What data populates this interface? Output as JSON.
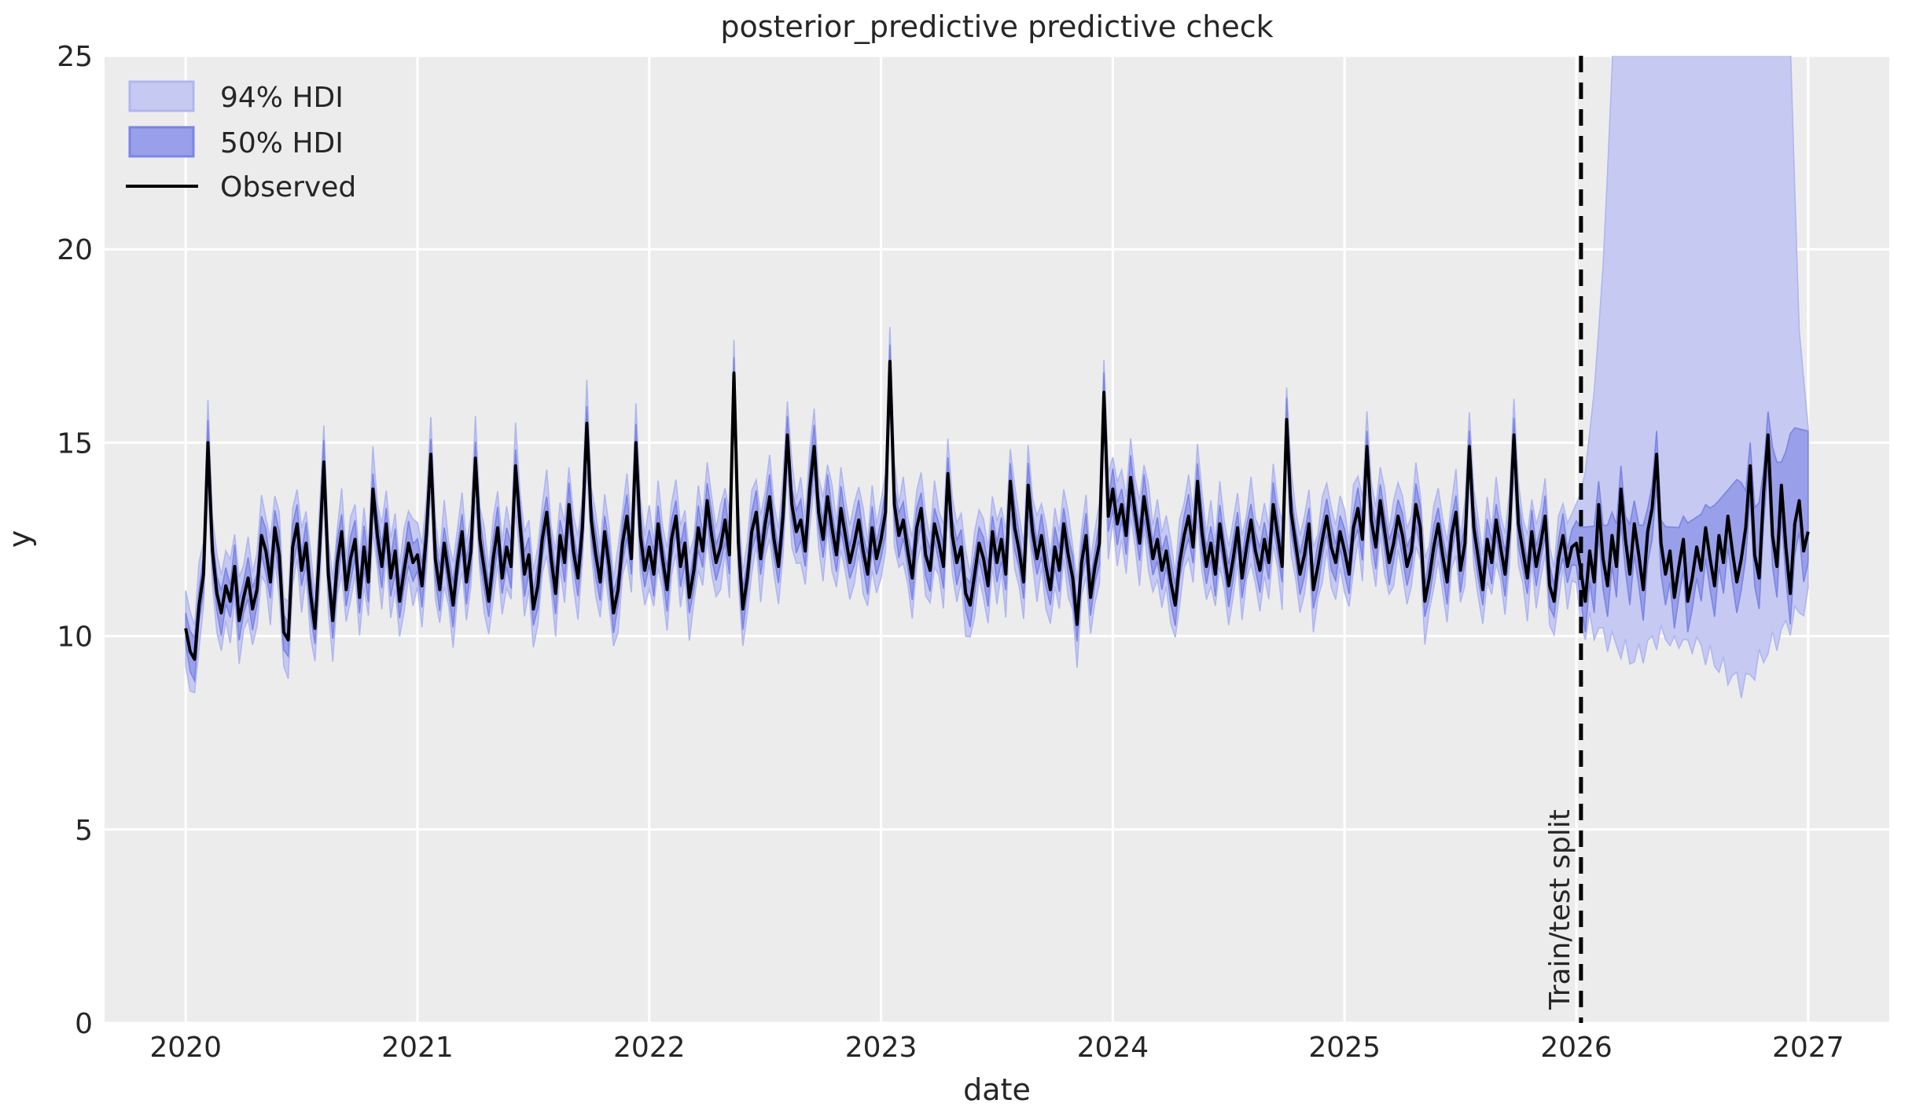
{
  "chart_data": {
    "type": "line",
    "title": "posterior_predictive predictive check",
    "xlabel": "date",
    "ylabel": "y",
    "xlim": [
      2019.65,
      2027.35
    ],
    "ylim": [
      0,
      25
    ],
    "xticks": [
      "2020",
      "2021",
      "2022",
      "2023",
      "2024",
      "2025",
      "2026",
      "2027"
    ],
    "xtick_years": [
      2020,
      2021,
      2022,
      2023,
      2024,
      2025,
      2026,
      2027
    ],
    "yticks": [
      0,
      5,
      10,
      15,
      20,
      25
    ],
    "grid": "white gridlines on light gray axes background",
    "legend": {
      "position": "upper left",
      "entries": [
        {
          "label": "94% HDI",
          "fill": "#c6c9f1",
          "edge": "#b0b6ee"
        },
        {
          "label": "50% HDI",
          "fill": "#999fe8",
          "edge": "#7b84e4"
        },
        {
          "label": "Observed",
          "stroke": "#000000"
        }
      ]
    },
    "annotation": {
      "label": "Train/test split",
      "x": 2026.02,
      "style": "vertical black dashed line, label rotated 90 degrees at line, lower left"
    },
    "series": {
      "observed": {
        "name": "Observed",
        "x_start": 2020,
        "points_per_year": 52,
        "values": [
          10.2,
          9.6,
          9.4,
          10.8,
          11.6,
          15.0,
          12.2,
          11.1,
          10.6,
          11.3,
          10.9,
          11.8,
          10.4,
          11.0,
          11.5,
          10.7,
          11.2,
          12.6,
          12.2,
          11.4,
          12.8,
          12.1,
          10.1,
          9.9,
          12.3,
          12.9,
          11.7,
          12.4,
          11.1,
          10.2,
          12.2,
          14.5,
          11.6,
          10.4,
          11.9,
          12.7,
          11.2,
          12.0,
          12.5,
          11.0,
          12.3,
          11.4,
          13.8,
          12.6,
          11.8,
          12.9,
          11.5,
          12.2,
          10.9,
          11.7,
          12.4,
          11.9,
          12.1,
          11.3,
          12.6,
          14.7,
          12.0,
          11.2,
          12.4,
          11.6,
          10.8,
          11.9,
          12.7,
          11.4,
          12.2,
          14.6,
          12.5,
          11.7,
          10.9,
          12.0,
          12.8,
          11.5,
          12.3,
          11.8,
          14.4,
          12.9,
          11.6,
          12.1,
          10.7,
          11.3,
          12.5,
          13.2,
          12.0,
          11.1,
          12.6,
          11.9,
          13.4,
          12.2,
          11.5,
          12.8,
          15.5,
          13.0,
          12.1,
          11.4,
          12.7,
          11.8,
          10.6,
          11.2,
          12.4,
          13.1,
          12.0,
          15.0,
          12.6,
          11.7,
          12.3,
          11.6,
          12.9,
          12.0,
          11.2,
          12.5,
          13.1,
          11.8,
          12.4,
          11.0,
          11.7,
          12.8,
          12.2,
          13.5,
          12.6,
          11.9,
          12.3,
          13.0,
          12.1,
          16.8,
          12.4,
          10.7,
          11.5,
          12.7,
          13.2,
          12.0,
          12.9,
          13.6,
          12.5,
          11.8,
          13.1,
          15.2,
          13.4,
          12.7,
          13.0,
          12.2,
          13.8,
          14.9,
          13.2,
          12.5,
          13.6,
          12.8,
          12.1,
          13.3,
          12.6,
          11.9,
          12.4,
          13.0,
          12.2,
          11.6,
          12.8,
          12.0,
          12.5,
          13.2,
          17.1,
          13.4,
          12.6,
          13.0,
          12.2,
          11.5,
          12.8,
          13.3,
          12.1,
          11.7,
          12.9,
          12.4,
          11.8,
          14.2,
          12.6,
          11.9,
          12.3,
          11.1,
          10.8,
          11.6,
          12.4,
          12.0,
          11.3,
          12.7,
          11.9,
          12.5,
          11.6,
          14.0,
          12.8,
          12.2,
          11.4,
          13.9,
          12.7,
          12.0,
          12.6,
          11.8,
          11.2,
          12.3,
          11.7,
          12.9,
          12.1,
          11.5,
          10.3,
          11.9,
          12.6,
          11.0,
          11.8,
          12.4,
          16.3,
          13.1,
          13.8,
          12.9,
          13.4,
          12.6,
          14.1,
          13.2,
          12.4,
          13.6,
          12.8,
          12.0,
          12.5,
          11.7,
          12.2,
          11.4,
          10.8,
          11.9,
          12.6,
          13.1,
          12.3,
          14.0,
          12.7,
          11.8,
          12.4,
          11.6,
          12.9,
          12.1,
          11.3,
          12.0,
          12.8,
          11.5,
          12.3,
          13.0,
          12.2,
          11.7,
          12.5,
          11.9,
          13.4,
          12.6,
          11.8,
          15.6,
          13.2,
          12.4,
          11.6,
          12.1,
          12.9,
          11.2,
          11.8,
          12.5,
          13.1,
          12.3,
          11.9,
          12.7,
          12.2,
          11.6,
          12.8,
          13.3,
          12.5,
          14.9,
          13.0,
          12.3,
          13.5,
          12.7,
          11.9,
          12.4,
          13.1,
          12.6,
          11.8,
          12.2,
          13.4,
          12.8,
          10.9,
          11.5,
          12.3,
          12.9,
          12.1,
          11.4,
          12.6,
          13.2,
          11.7,
          12.4,
          14.9,
          12.8,
          12.0,
          11.2,
          12.5,
          11.9,
          13.0,
          12.3,
          11.6,
          12.8,
          15.2,
          12.9,
          12.2,
          11.5,
          12.7,
          11.8,
          12.4,
          13.1,
          11.3,
          10.9,
          12.0,
          12.6,
          11.8,
          12.3,
          12.4,
          11.7,
          10.9,
          12.2,
          11.4,
          13.4,
          12.0,
          11.3,
          12.6,
          11.8,
          13.8,
          12.5,
          11.6,
          12.9,
          12.1,
          11.2,
          12.7,
          13.3,
          14.7,
          12.4,
          11.6,
          12.2,
          11.0,
          11.8,
          12.5,
          10.9,
          11.5,
          12.3,
          11.7,
          12.8,
          12.0,
          11.3,
          12.6,
          11.9,
          13.1,
          12.2,
          11.4,
          12.0,
          12.8,
          14.4,
          12.1,
          11.5,
          13.7,
          15.2,
          12.6,
          11.8,
          13.9,
          12.3,
          11.1,
          12.9,
          13.5,
          12.2,
          12.7
        ]
      },
      "hdi_50": {
        "name": "50% HDI",
        "train_until": 2026.0,
        "train_halfwidth_base": 0.4,
        "train_halfwidth_jitter": 0.18,
        "test_lower_offset": 0.8,
        "test_upper_min_offset": 0.6,
        "test_upper_anchors": [
          [
            2026.0,
            12.8
          ],
          [
            2026.2,
            12.9
          ],
          [
            2026.45,
            12.8
          ],
          [
            2026.6,
            13.4
          ],
          [
            2026.7,
            14.1
          ],
          [
            2026.78,
            13.2
          ],
          [
            2026.84,
            15.0
          ],
          [
            2026.88,
            14.2
          ],
          [
            2026.93,
            15.4
          ],
          [
            2027.0,
            15.3
          ]
        ]
      },
      "hdi_94": {
        "name": "94% HDI",
        "train_until": 2026.0,
        "train_halfwidth_base": 0.82,
        "train_halfwidth_jitter": 0.3,
        "test_lower_min_offset": 1.0,
        "test_upper_anchors": [
          [
            2026.0,
            13.2
          ],
          [
            2026.04,
            14.3
          ],
          [
            2026.08,
            16.5
          ],
          [
            2026.12,
            20.0
          ],
          [
            2026.16,
            25.5
          ],
          [
            2026.22,
            34.0
          ],
          [
            2026.4,
            55.0
          ],
          [
            2026.6,
            62.0
          ],
          [
            2026.75,
            50.0
          ],
          [
            2026.85,
            40.0
          ],
          [
            2026.9,
            30.0
          ],
          [
            2026.93,
            24.0
          ],
          [
            2026.96,
            18.0
          ],
          [
            2027.0,
            15.4
          ]
        ],
        "test_lower_anchors": [
          [
            2026.0,
            10.6
          ],
          [
            2026.1,
            10.1
          ],
          [
            2026.25,
            9.4
          ],
          [
            2026.35,
            10.0
          ],
          [
            2026.5,
            9.9
          ],
          [
            2026.62,
            9.2
          ],
          [
            2026.72,
            8.7
          ],
          [
            2026.82,
            9.6
          ],
          [
            2026.9,
            10.2
          ],
          [
            2027.0,
            10.9
          ]
        ]
      }
    },
    "colors": {
      "plot_background": "#ececec",
      "figure_background": "#ffffff",
      "grid": "#ffffff",
      "observed_line": "#000000",
      "hdi_94_fill": "#c6c9f1",
      "hdi_94_edge": "#b0b6ee",
      "hdi_50_fill": "#999fe8",
      "hdi_50_edge": "#7b84e4",
      "split_line": "#000000",
      "text": "#262626"
    }
  }
}
